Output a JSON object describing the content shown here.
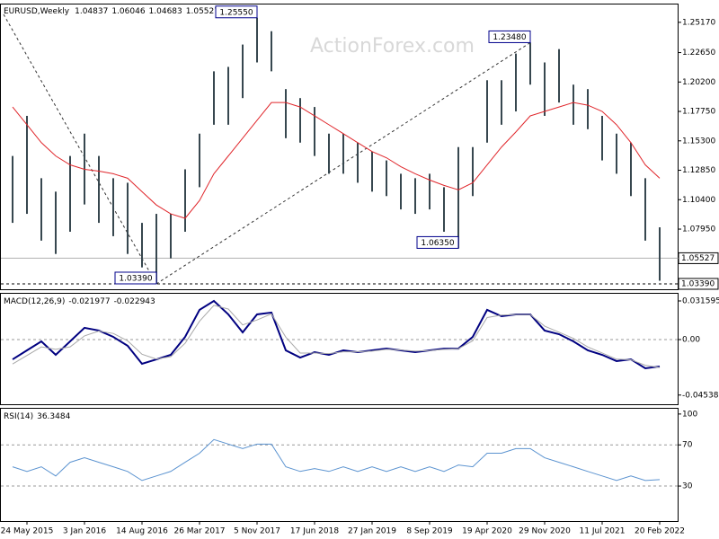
{
  "chart_data": [
    {
      "type": "hilo",
      "title": "EURUSD,Weekly",
      "quote": {
        "open": 1.04837,
        "high": 1.06046,
        "low": 1.04683,
        "close": 1.05527
      },
      "watermark": "ActionForex.com",
      "color": "#37474f",
      "high": [
        1.1404,
        1.1738,
        1.1219,
        1.1107,
        1.1404,
        1.159,
        1.1404,
        1.1219,
        1.1181,
        1.0847,
        1.0922,
        1.0922,
        1.1293,
        1.159,
        1.2109,
        1.2146,
        1.2332,
        1.2555,
        1.2443,
        1.1961,
        1.1886,
        1.1812,
        1.159,
        1.159,
        1.1515,
        1.1441,
        1.1367,
        1.1256,
        1.1219,
        1.1256,
        1.1144,
        1.1478,
        1.1478,
        1.2035,
        1.2035,
        1.2257,
        1.2348,
        1.2183,
        1.2294,
        1.1998,
        1.1961,
        1.1738,
        1.159,
        1.1515,
        1.1219,
        1.081
      ],
      "low": [
        1.0847,
        1.0922,
        1.0699,
        1.0588,
        1.0773,
        1.1,
        1.0847,
        1.0736,
        1.0588,
        1.0476,
        1.0339,
        1.0551,
        1.0773,
        1.1144,
        1.1664,
        1.1664,
        1.1886,
        1.2183,
        1.2109,
        1.1552,
        1.1515,
        1.1404,
        1.1256,
        1.1256,
        1.1181,
        1.1107,
        1.107,
        1.0959,
        1.0922,
        1.0959,
        1.0773,
        1.0635,
        1.107,
        1.1515,
        1.1664,
        1.1775,
        1.1998,
        1.1738,
        1.1849,
        1.1664,
        1.1627,
        1.1367,
        1.1256,
        1.107,
        1.0699,
        1.0365
      ],
      "ma": {
        "color": "#e0262b",
        "values": [
          1.1812,
          1.1664,
          1.1515,
          1.1404,
          1.133,
          1.1293,
          1.1278,
          1.1256,
          1.1219,
          1.1107,
          1.0996,
          1.0922,
          1.0885,
          1.1033,
          1.1256,
          1.1404,
          1.1552,
          1.1701,
          1.1849,
          1.1849,
          1.1812,
          1.1738,
          1.1664,
          1.159,
          1.1515,
          1.1441,
          1.1389,
          1.1315,
          1.1256,
          1.1204,
          1.1159,
          1.1122,
          1.1181,
          1.133,
          1.1478,
          1.1604,
          1.1738,
          1.1775,
          1.1812,
          1.1849,
          1.1827,
          1.1775,
          1.1664,
          1.1515,
          1.133,
          1.1219
        ]
      },
      "annotations": [
        {
          "label": "1.25550",
          "value": 1.2555,
          "at": 17
        },
        {
          "label": "1.23480",
          "value": 1.2348,
          "at": 36
        },
        {
          "label": "1.06350",
          "value": 1.0635,
          "at": 31
        },
        {
          "label": "1.03390",
          "value": 1.0339,
          "at": 10
        }
      ],
      "ylim": [
        1.0294,
        1.2673
      ],
      "yticks": [
        {
          "value": 1.2517,
          "label": "1.25170"
        },
        {
          "value": 1.2265,
          "label": "1.22650"
        },
        {
          "value": 1.202,
          "label": "1.20200"
        },
        {
          "value": 1.1775,
          "label": "1.17750"
        },
        {
          "value": 1.153,
          "label": "1.15300"
        },
        {
          "value": 1.1285,
          "label": "1.12850"
        },
        {
          "value": 1.104,
          "label": "1.10400"
        },
        {
          "value": 1.0795,
          "label": "1.07950"
        }
      ]
    },
    {
      "type": "line",
      "title": "MACD(12,26,9)",
      "readout": [
        -0.021977,
        -0.022943
      ],
      "series": [
        {
          "color": "#000080",
          "width": 2,
          "values": [
            -0.0162,
            -0.0088,
            -0.0015,
            -0.0125,
            -0.0015,
            0.0096,
            0.0074,
            0.0022,
            -0.0051,
            -0.0198,
            -0.0162,
            -0.0125,
            0.0022,
            0.0243,
            0.0316,
            0.0206,
            0.0059,
            0.0206,
            0.0221,
            -0.0088,
            -0.0147,
            -0.0103,
            -0.0125,
            -0.0088,
            -0.0103,
            -0.0088,
            -0.0074,
            -0.0088,
            -0.0103,
            -0.0088,
            -0.0074,
            -0.0074,
            0.0022,
            0.0243,
            0.0191,
            0.0206,
            0.0206,
            0.0074,
            0.0044,
            -0.0015,
            -0.0088,
            -0.0125,
            -0.0176,
            -0.0162,
            -0.0235,
            -0.022
          ]
        },
        {
          "color": "#a9a9a9",
          "width": 1,
          "values": [
            -0.02,
            -0.013,
            -0.006,
            -0.008,
            -0.006,
            0.003,
            0.007,
            0.005,
            -0.001,
            -0.012,
            -0.016,
            -0.014,
            -0.003,
            0.015,
            0.028,
            0.025,
            0.012,
            0.016,
            0.021,
            0.002,
            -0.011,
            -0.011,
            -0.0115,
            -0.01,
            -0.01,
            -0.0095,
            -0.008,
            -0.0085,
            -0.0095,
            -0.009,
            -0.008,
            -0.0075,
            -0.001,
            0.018,
            0.02,
            0.0205,
            0.0205,
            0.011,
            0.006,
            0.001,
            -0.006,
            -0.011,
            -0.016,
            -0.0165,
            -0.021,
            -0.0229
          ]
        }
      ],
      "ylim": [
        -0.0529,
        0.0382
      ],
      "yticks": [
        0.031595,
        {
          "value": 0,
          "label": "0.00"
        },
        -0.045387
      ],
      "levels": [
        0
      ]
    },
    {
      "type": "line",
      "title": "RSI(14)",
      "readout": 36.3484,
      "series": [
        {
          "color": "#5b93d0",
          "width": 1,
          "values": [
            48.7,
            44.2,
            48.7,
            39.8,
            53.1,
            57.5,
            53.1,
            48.7,
            44.2,
            35.4,
            39.8,
            44.2,
            53.1,
            61.9,
            75.2,
            70.8,
            66.4,
            70.8,
            70.8,
            48.7,
            44.2,
            46.9,
            44.2,
            48.7,
            44.2,
            48.7,
            44.2,
            48.7,
            44.2,
            48.7,
            44.2,
            50.4,
            48.7,
            61.9,
            61.9,
            66.4,
            66.4,
            57.5,
            53.1,
            48.7,
            44.2,
            39.8,
            35.4,
            39.8,
            35.4,
            36.3
          ]
        }
      ],
      "ylim": [
        -4,
        106
      ],
      "yticks": [
        100,
        70,
        30
      ],
      "levels": [
        70,
        30
      ],
      "categories": [
        null,
        "24 May 2015",
        null,
        null,
        null,
        "3 Jan 2016",
        null,
        null,
        null,
        "14 Aug 2016",
        null,
        null,
        null,
        "26 Mar 2017",
        null,
        null,
        null,
        "5 Nov 2017",
        null,
        null,
        null,
        "17 Jun 2018",
        null,
        null,
        null,
        "27 Jan 2019",
        null,
        null,
        null,
        "8 Sep 2019",
        null,
        null,
        null,
        "19 Apr 2020",
        null,
        null,
        null,
        "29 Nov 2020",
        null,
        null,
        null,
        "11 Jul 2021",
        null,
        null,
        null,
        "20 Feb 2022"
      ]
    }
  ]
}
